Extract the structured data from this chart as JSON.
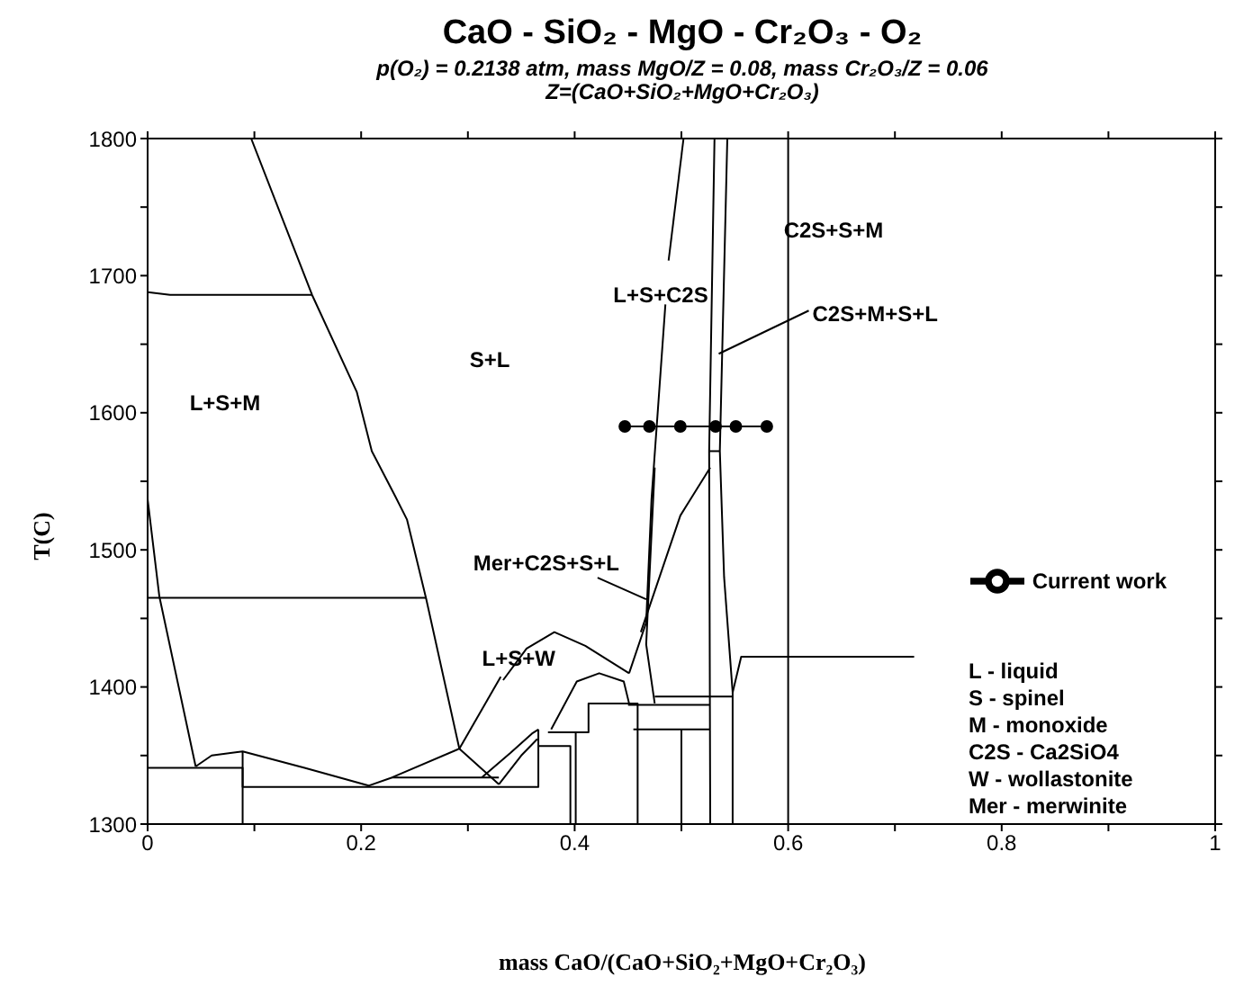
{
  "chart_data": {
    "type": "line",
    "title": "CaO - SiO₂ - MgO - Cr₂O₃ - O₂",
    "subtitle": "p(O₂) = 0.2138 atm,  mass MgO/Z = 0.08,  mass Cr₂O₃/Z = 0.06\nZ=(CaO+SiO₂+MgO+Cr₂O₃)",
    "xlabel": "mass CaO/(CaO+SiO₂+MgO+Cr₂O₃)",
    "ylabel": "T(C)",
    "xlim": [
      0,
      1
    ],
    "xticks": [
      0,
      {
        "value": 0.1,
        "label": null
      },
      0.2,
      {
        "value": 0.3,
        "label": null
      },
      0.4,
      {
        "value": 0.5,
        "label": null
      },
      0.6,
      {
        "value": 0.7,
        "label": null
      },
      0.8,
      {
        "value": 0.9,
        "label": null
      },
      1
    ],
    "ylim": [
      1300,
      1800
    ],
    "yticks": [
      1300,
      {
        "value": 1350,
        "label": null
      },
      1400,
      {
        "value": 1450,
        "label": null
      },
      1500,
      {
        "value": 1550,
        "label": null
      },
      1600,
      {
        "value": 1650,
        "label": null
      },
      1700,
      {
        "value": 1750,
        "label": null
      },
      1800
    ],
    "grid": false,
    "legend": "right",
    "marker": "none",
    "line_style": "solid",
    "annotations": [
      "L+S+M",
      "S+L",
      "L+S+C2S",
      "C2S+S+M",
      {
        "text": "C2S+M+S+L",
        "x": 0.535,
        "y": 1643
      },
      {
        "text": "Mer+C2S+S+L",
        "x": 0.467,
        "y": 1464
      },
      {
        "text": "L+S+W",
        "x": 0.292,
        "y": 1355
      },
      "L - liquid",
      "S - spinel",
      "M - monoxide",
      "C2S - Ca2SiO4",
      "W - wollastonite",
      "Mer - merwinite"
    ],
    "series": [
      {
        "color": "#000000",
        "x": [
          0.097,
          0.154,
          0.196,
          0.21,
          0.232,
          0.243,
          0.261,
          0.292,
          0.329
        ],
        "values": [
          1800,
          1686,
          1615,
          1572,
          1539,
          1522,
          1464,
          1355,
          1329
        ]
      },
      {
        "color": "#000000",
        "x": [
          0,
          0.021,
          0.154
        ],
        "values": [
          1688,
          1686,
          1686
        ]
      },
      {
        "color": "#000000",
        "x": [
          0,
          0.011,
          0.045
        ],
        "values": [
          1537,
          1466,
          1342
        ]
      },
      {
        "color": "#000000",
        "x": [
          0,
          0.261
        ],
        "values": [
          1465,
          1465
        ]
      },
      {
        "color": "#000000",
        "x": [
          0,
          0.089,
          0.089
        ],
        "values": [
          1341,
          1341,
          1300
        ]
      },
      {
        "color": "#000000",
        "x": [
          0.045,
          0.06,
          0.089,
          0.147,
          0.207,
          0.229,
          0.292
        ],
        "values": [
          1342,
          1350,
          1353,
          1341,
          1328,
          1334,
          1355
        ]
      },
      {
        "color": "#000000",
        "x": [
          0.229,
          0.329
        ],
        "values": [
          1334,
          1334
        ]
      },
      {
        "color": "#000000",
        "x": [
          0.089,
          0.089,
          0.366,
          0.366
        ],
        "values": [
          1353,
          1327,
          1327,
          1369
        ]
      },
      {
        "color": "#000000",
        "x": [
          0.313,
          0.34,
          0.36,
          0.366
        ],
        "values": [
          1334,
          1352,
          1366,
          1369
        ]
      },
      {
        "color": "#000000",
        "x": [
          0.329,
          0.35,
          0.365
        ],
        "values": [
          1329,
          1350,
          1362
        ]
      },
      {
        "color": "#000000",
        "x": [
          0.366,
          0.396,
          0.396
        ],
        "values": [
          1357,
          1357,
          1300
        ]
      },
      {
        "color": "#000000",
        "x": [
          0.375,
          0.413,
          0.413,
          0.459,
          0.459
        ],
        "values": [
          1367,
          1367,
          1388,
          1388,
          1300
        ]
      },
      {
        "color": "#000000",
        "x": [
          0.401,
          0.401
        ],
        "values": [
          1367,
          1300
        ]
      },
      {
        "color": "#000000",
        "x": [
          0.333,
          0.355,
          0.381,
          0.41,
          0.451
        ],
        "values": [
          1405,
          1428,
          1440,
          1430,
          1410
        ]
      },
      {
        "color": "#000000",
        "x": [
          0.378,
          0.402,
          0.423,
          0.446,
          0.451
        ],
        "values": [
          1369,
          1404,
          1410,
          1404,
          1388
        ]
      },
      {
        "color": "#000000",
        "x": [
          0.502,
          0.488
        ],
        "values": [
          1800,
          1711
        ]
      },
      {
        "color": "#000000",
        "x": [
          0.485,
          0.472,
          0.467,
          0.451
        ],
        "values": [
          1679,
          1537,
          1447,
          1410
        ]
      },
      {
        "color": "#000000",
        "x": [
          0.462,
          0.499,
          0.527
        ],
        "values": [
          1440,
          1525,
          1560
        ]
      },
      {
        "color": "#000000",
        "x": [
          0.475,
          0.467,
          0.475
        ],
        "values": [
          1560,
          1431,
          1388
        ]
      },
      {
        "color": "#000000",
        "x": [
          0.531,
          0.526,
          0.527
        ],
        "values": [
          1800,
          1572,
          1300
        ]
      },
      {
        "color": "#000000",
        "x": [
          0.543,
          0.536,
          0.54,
          0.548,
          0.548
        ],
        "values": [
          1800,
          1572,
          1480,
          1396,
          1300
        ]
      },
      {
        "color": "#000000",
        "x": [
          0.526,
          0.536
        ],
        "values": [
          1572,
          1572
        ]
      },
      {
        "color": "#000000",
        "x": [
          0.6,
          0.6
        ],
        "values": [
          1800,
          1300
        ]
      },
      {
        "color": "#000000",
        "x": [
          0.548,
          0.556,
          0.718
        ],
        "values": [
          1396,
          1422,
          1422
        ]
      },
      {
        "color": "#000000",
        "x": [
          0.45,
          0.527
        ],
        "values": [
          1387,
          1387
        ]
      },
      {
        "color": "#000000",
        "x": [
          0.455,
          0.527
        ],
        "values": [
          1369,
          1369
        ]
      },
      {
        "color": "#000000",
        "x": [
          0.475,
          0.548
        ],
        "values": [
          1393,
          1393
        ]
      },
      {
        "color": "#000000",
        "x": [
          0.5,
          0.5
        ],
        "values": [
          1369,
          1300
        ]
      },
      {
        "name": "Current work",
        "color": "#000000",
        "marker": "circle",
        "x": [
          0.447,
          0.47,
          0.499,
          0.532,
          0.551,
          0.58
        ],
        "values": [
          1590,
          1590,
          1590,
          1590,
          1590,
          1590
        ]
      }
    ]
  }
}
